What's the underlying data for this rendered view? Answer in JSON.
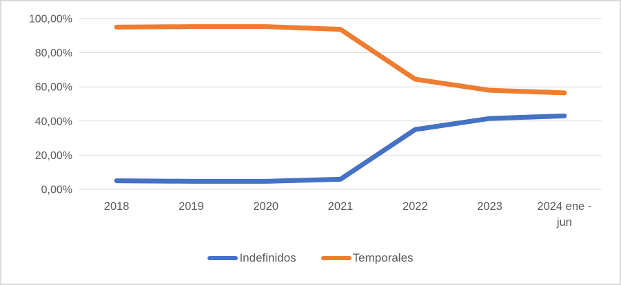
{
  "chart_data": {
    "type": "line",
    "categories": [
      "2018",
      "2019",
      "2020",
      "2021",
      "2022",
      "2023",
      "2024 ene - jun"
    ],
    "series": [
      {
        "name": "Indefinidos",
        "color": "#4472C4",
        "values": [
          5.0,
          4.7,
          4.7,
          5.9,
          35.0,
          41.5,
          43.0
        ]
      },
      {
        "name": "Temporales",
        "color": "#ED7D31",
        "values": [
          95.0,
          95.3,
          95.3,
          93.7,
          64.5,
          58.0,
          56.5
        ]
      }
    ],
    "title": "",
    "xlabel": "",
    "ylabel": "",
    "y_axis": {
      "min": 0,
      "max": 100,
      "step": 20,
      "tick_labels": [
        "0,00%",
        "20,00%",
        "40,00%",
        "60,00%",
        "80,00%",
        "100,00%"
      ]
    },
    "grid": true,
    "legend_position": "bottom",
    "colors": {
      "gridline": "#d9d9d9",
      "axis_text": "#595959",
      "background": "#ffffff",
      "border": "#d9d9d9"
    }
  },
  "legend": {
    "items": [
      {
        "label": "Indefinidos",
        "color": "#4472C4"
      },
      {
        "label": "Temporales",
        "color": "#ED7D31"
      }
    ]
  }
}
